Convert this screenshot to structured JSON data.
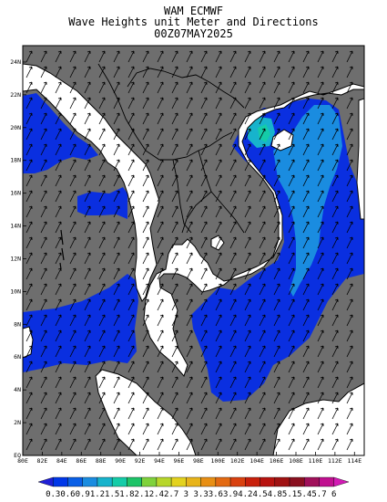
{
  "header": {
    "title_line1": "WAM ECMWF",
    "title_line2": "Wave Heights unit Meter and Directions",
    "title_line3": "00Z07MAY2025"
  },
  "map": {
    "lon_labels": [
      "80E",
      "82E",
      "84E",
      "86E",
      "88E",
      "90E",
      "92E",
      "94E",
      "96E",
      "98E",
      "100E",
      "102E",
      "104E",
      "106E",
      "108E",
      "110E",
      "112E",
      "114E"
    ],
    "lat_labels": [
      "24N",
      "22N",
      "20N",
      "18N",
      "16N",
      "14N",
      "12N",
      "10N",
      "8N",
      "6N",
      "4N",
      "2N",
      "EQ"
    ],
    "lon_range": [
      80,
      115
    ],
    "lat_range": [
      0,
      25
    ],
    "land_color": "#ffffff",
    "no_data_color": "#6e6e6e",
    "dominant_wave_direction": "north-east"
  },
  "colorbar": {
    "labels": [
      "0.3",
      "0.6",
      "0.9",
      "1.2",
      "1.5",
      "1.8",
      "2.1",
      "2.4",
      "2.7",
      "3",
      "3.3",
      "3.6",
      "3.9",
      "4.2",
      "4.5",
      "4.8",
      "5.1",
      "5.4",
      "5.7",
      "6"
    ],
    "colors": [
      "#1f1fd6",
      "#0037e8",
      "#0a5fe6",
      "#1a8ce0",
      "#17b3cc",
      "#14cca8",
      "#1ec468",
      "#7fd23c",
      "#b7d62b",
      "#e3d21e",
      "#e8b41a",
      "#e88f14",
      "#e36a12",
      "#d9410f",
      "#c8200c",
      "#b8130f",
      "#a01212",
      "#8a1020",
      "#a0105a",
      "#c01090",
      "#d21ab4"
    ]
  }
}
